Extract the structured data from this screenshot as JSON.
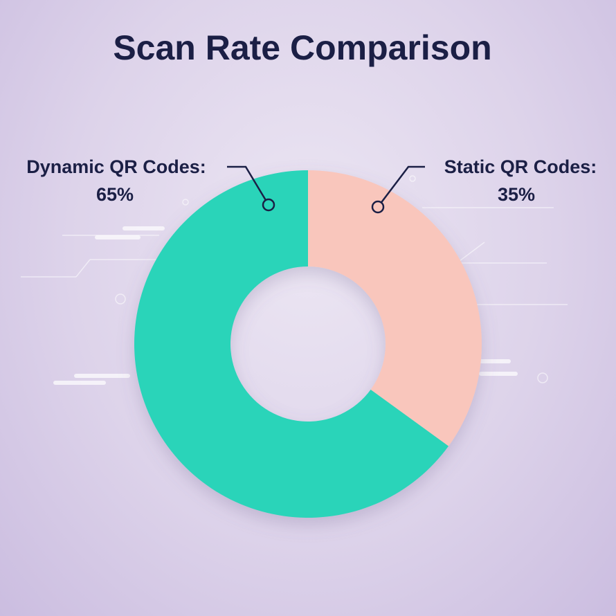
{
  "chart_data": {
    "type": "pie",
    "title": "Scan Rate Comparison",
    "donut": true,
    "start_angle_deg": 0,
    "direction": "counterclockwise",
    "slices": [
      {
        "name": "Dynamic QR Codes:",
        "value": 65,
        "value_label": "65%",
        "color": "#2ad4b9"
      },
      {
        "name": "Static QR Codes:",
        "value": 35,
        "value_label": "35%",
        "color": "#f9c6bc"
      }
    ],
    "legend": "none"
  },
  "colors": {
    "title": "#1b1f45",
    "leader": "#1b1f45",
    "background": "#e4dcee"
  }
}
